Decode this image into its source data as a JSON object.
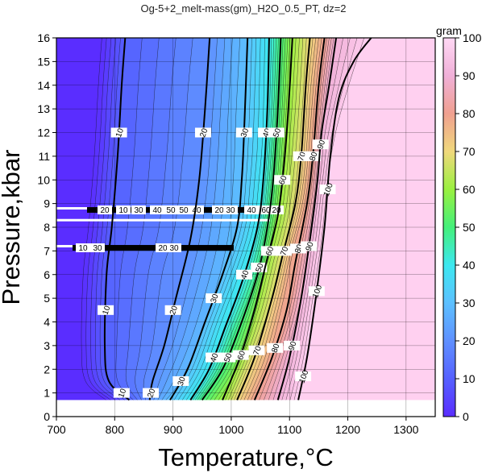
{
  "chart_data": {
    "type": "heatmap",
    "title": "Og-5+2_melt-mass(gm)_H2O_0.5_PT, dz=2",
    "xlabel": "Temperature,°C",
    "ylabel": "Pressure,kbar",
    "xlim": [
      700,
      1350
    ],
    "ylim": [
      0,
      16
    ],
    "x_ticks": [
      700,
      800,
      900,
      1000,
      1100,
      1200,
      1300
    ],
    "y_ticks": [
      0,
      1,
      2,
      3,
      4,
      5,
      6,
      7,
      8,
      9,
      10,
      11,
      12,
      13,
      14,
      15,
      16
    ],
    "grid": true,
    "colorbar": {
      "label": "gram",
      "range": [
        0,
        100
      ],
      "ticks": [
        0,
        10,
        20,
        30,
        40,
        50,
        60,
        70,
        80,
        90,
        100
      ]
    },
    "contour_interval": 2,
    "labeled_contours": [
      {
        "level": 10,
        "points": [
          [
            825,
            0.7
          ],
          [
            790,
            1.5
          ],
          [
            783,
            3
          ],
          [
            786,
            6
          ],
          [
            795,
            8
          ],
          [
            805,
            11
          ],
          [
            812,
            14
          ],
          [
            818,
            16
          ]
        ]
      },
      {
        "level": 20,
        "points": [
          [
            860,
            0.7
          ],
          [
            865,
            1.5
          ],
          [
            885,
            3
          ],
          [
            905,
            5
          ],
          [
            930,
            7.5
          ],
          [
            945,
            10
          ],
          [
            955,
            13
          ],
          [
            963,
            16
          ]
        ]
      },
      {
        "level": 30,
        "points": [
          [
            895,
            0.7
          ],
          [
            925,
            2
          ],
          [
            955,
            4
          ],
          [
            985,
            6
          ],
          [
            1010,
            8
          ],
          [
            1018,
            10
          ],
          [
            1022,
            12
          ],
          [
            1028,
            16
          ]
        ]
      },
      {
        "level": 40,
        "points": [
          [
            930,
            0.7
          ],
          [
            962,
            2
          ],
          [
            990,
            3.8
          ],
          [
            1020,
            5.8
          ],
          [
            1045,
            8
          ],
          [
            1055,
            10
          ],
          [
            1062,
            13
          ],
          [
            1065,
            16
          ]
        ]
      },
      {
        "level": 50,
        "points": [
          [
            950,
            0.7
          ],
          [
            985,
            2
          ],
          [
            1015,
            3.8
          ],
          [
            1045,
            6
          ],
          [
            1062,
            8
          ],
          [
            1072,
            10
          ],
          [
            1080,
            13
          ],
          [
            1085,
            16
          ]
        ]
      },
      {
        "level": 60,
        "points": [
          [
            985,
            0.7
          ],
          [
            1015,
            2.5
          ],
          [
            1040,
            4.5
          ],
          [
            1060,
            6.5
          ],
          [
            1080,
            8.5
          ],
          [
            1090,
            10.5
          ],
          [
            1098,
            13
          ],
          [
            1105,
            16
          ]
        ]
      },
      {
        "level": 70,
        "points": [
          [
            1010,
            0.7
          ],
          [
            1040,
            2.5
          ],
          [
            1070,
            5
          ],
          [
            1090,
            7
          ],
          [
            1110,
            9
          ],
          [
            1120,
            11
          ],
          [
            1128,
            14
          ],
          [
            1135,
            16
          ]
        ]
      },
      {
        "level": 80,
        "points": [
          [
            1040,
            0.7
          ],
          [
            1070,
            2.5
          ],
          [
            1095,
            4.5
          ],
          [
            1110,
            6.5
          ],
          [
            1130,
            9
          ],
          [
            1140,
            11
          ],
          [
            1150,
            14
          ],
          [
            1160,
            16
          ]
        ]
      },
      {
        "level": 90,
        "points": [
          [
            1080,
            0.7
          ],
          [
            1100,
            2.5
          ],
          [
            1120,
            5
          ],
          [
            1135,
            7.5
          ],
          [
            1148,
            10
          ],
          [
            1155,
            12
          ],
          [
            1168,
            14
          ],
          [
            1180,
            16
          ]
        ]
      },
      {
        "level": 100,
        "points": [
          [
            1115,
            0.7
          ],
          [
            1130,
            2.5
          ],
          [
            1145,
            5
          ],
          [
            1160,
            8
          ],
          [
            1170,
            11
          ],
          [
            1185,
            13.5
          ],
          [
            1210,
            15
          ],
          [
            1240,
            16
          ]
        ]
      }
    ],
    "contour_labels": [
      "10",
      "20",
      "30",
      "40",
      "50",
      "60",
      "70",
      "80",
      "90",
      "100"
    ],
    "artifact_labels": [
      "20",
      "10",
      "30",
      "40",
      "50",
      "50",
      "40",
      "20",
      "30",
      "40",
      "60",
      "20",
      "10",
      "30",
      "20",
      "30"
    ]
  }
}
